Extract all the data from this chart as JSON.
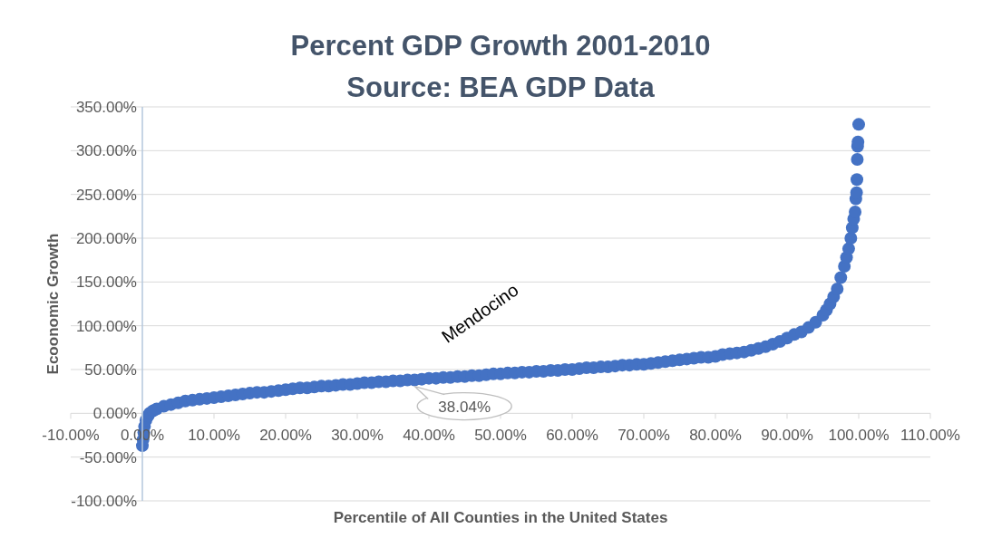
{
  "chart_data": {
    "type": "scatter",
    "title": "Percent GDP Growth 2001-2010",
    "subtitle": "Source: BEA GDP Data",
    "xlabel": "Percentile of All Counties in the United States",
    "ylabel": "Ecoonomic Growth",
    "x": [
      0,
      0.1,
      0.2,
      0.3,
      0.5,
      0.8,
      1,
      1.5,
      2,
      3,
      4,
      5,
      6,
      7,
      8,
      9,
      10,
      11,
      12,
      13,
      14,
      15,
      16,
      17,
      18,
      19,
      20,
      21,
      22,
      23,
      24,
      25,
      26,
      27,
      28,
      29,
      30,
      31,
      32,
      33,
      34,
      35,
      36,
      37,
      38,
      39,
      40,
      41,
      42,
      43,
      44,
      45,
      46,
      47,
      48,
      49,
      50,
      51,
      52,
      53,
      54,
      55,
      56,
      57,
      58,
      59,
      60,
      61,
      62,
      63,
      64,
      65,
      66,
      67,
      68,
      69,
      70,
      71,
      72,
      73,
      74,
      75,
      76,
      77,
      78,
      79,
      80,
      81,
      82,
      83,
      84,
      85,
      86,
      87,
      88,
      89,
      90,
      91,
      92,
      93,
      94,
      95,
      95.5,
      96,
      96.5,
      97,
      97.5,
      98,
      98.3,
      98.6,
      98.9,
      99.1,
      99.3,
      99.5,
      99.6,
      99.7,
      99.75,
      99.8,
      99.85,
      99.9,
      100
    ],
    "series": [
      {
        "color": "#4472c4",
        "values": [
          -37,
          -30,
          -22,
          -15,
          -8,
          -3,
          0,
          3,
          5,
          8,
          10,
          12,
          14,
          15,
          16,
          17,
          18,
          19,
          20,
          21,
          22,
          23,
          24,
          24,
          25,
          26,
          27,
          28,
          29,
          29,
          30,
          31,
          31,
          32,
          33,
          33,
          34,
          35,
          35,
          36,
          36,
          37,
          37,
          38,
          38.04,
          39,
          40,
          40,
          41,
          41,
          42,
          42,
          43,
          43,
          44,
          45,
          45,
          46,
          46,
          47,
          47,
          48,
          48,
          49,
          49,
          50,
          50,
          51,
          52,
          52,
          53,
          53,
          54,
          55,
          55,
          56,
          56,
          57,
          58,
          59,
          60,
          61,
          62,
          63,
          64,
          64,
          65,
          67,
          68,
          69,
          70,
          72,
          74,
          76,
          79,
          82,
          86,
          90,
          93,
          98,
          104,
          112,
          118,
          125,
          133,
          142,
          155,
          168,
          178,
          188,
          200,
          212,
          222,
          230,
          245,
          252,
          267,
          290,
          305,
          310,
          330
        ]
      }
    ],
    "xlim": [
      -10,
      110
    ],
    "xticks": [
      {
        "value": -10,
        "label": "-10.00%"
      },
      {
        "value": 0,
        "label": "0.00%"
      },
      {
        "value": 10,
        "label": "10.00%"
      },
      {
        "value": 20,
        "label": "20.00%"
      },
      {
        "value": 30,
        "label": "30.00%"
      },
      {
        "value": 40,
        "label": "40.00%"
      },
      {
        "value": 50,
        "label": "50.00%"
      },
      {
        "value": 60,
        "label": "60.00%"
      },
      {
        "value": 70,
        "label": "70.00%"
      },
      {
        "value": 80,
        "label": "80.00%"
      },
      {
        "value": 90,
        "label": "90.00%"
      },
      {
        "value": 100,
        "label": "100.00%"
      },
      {
        "value": 110,
        "label": "110.00%"
      }
    ],
    "ylim": [
      -100,
      350
    ],
    "yticks": [
      {
        "value": -100,
        "label": "-100.00%"
      },
      {
        "value": -50,
        "label": "-50.00%"
      },
      {
        "value": 0,
        "label": "0.00%"
      },
      {
        "value": 50,
        "label": "50.00%"
      },
      {
        "value": 100,
        "label": "100.00%"
      },
      {
        "value": 150,
        "label": "150.00%"
      },
      {
        "value": 200,
        "label": "200.00%"
      },
      {
        "value": 250,
        "label": "250.00%"
      },
      {
        "value": 300,
        "label": "300.00%"
      },
      {
        "value": 350,
        "label": "350.00%"
      }
    ],
    "grid": "y",
    "marker": "circle",
    "annotations": [
      {
        "text": "Mendocino",
        "x": 38,
        "y": 38.04
      },
      {
        "text": "38.04%",
        "x": 38,
        "y": 38.04
      }
    ]
  }
}
